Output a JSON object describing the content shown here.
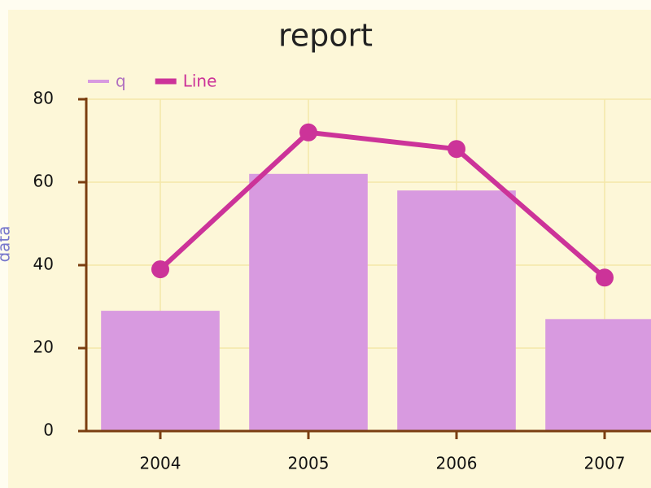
{
  "chart_data": {
    "type": "bar",
    "title": "report",
    "y_label": "data",
    "categories": [
      "2004",
      "2005",
      "2006",
      "2007"
    ],
    "series": [
      {
        "name": "q",
        "type": "bar",
        "color": "#d89ae0",
        "values": [
          29,
          62,
          58,
          27
        ]
      },
      {
        "name": "Line",
        "type": "line",
        "color": "#cc3399",
        "values": [
          39,
          72,
          68,
          37
        ]
      }
    ],
    "ylim": [
      0,
      80
    ],
    "yticks": [
      0,
      20,
      40,
      60,
      80
    ],
    "grid": true,
    "legend": "top-left"
  }
}
